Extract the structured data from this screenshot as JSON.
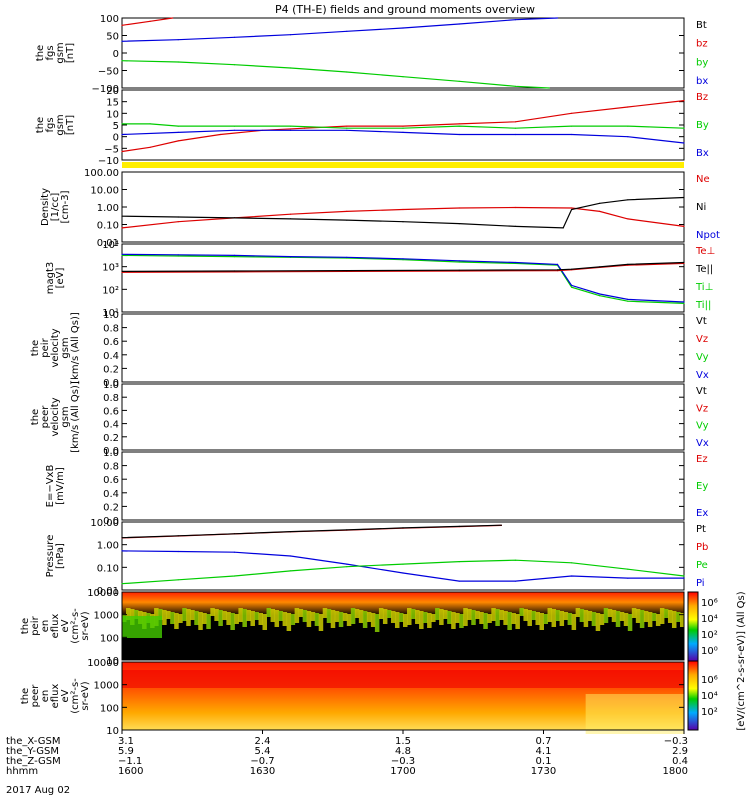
{
  "title": "P4 (TH-E) fields and ground moments overview",
  "date_label": "2017 Aug 02",
  "colors": {
    "red": "#dd0000",
    "green": "#00cc00",
    "blue": "#0000dd",
    "black": "#000000",
    "yellow": "#ffee00"
  },
  "chart_data": [
    {
      "type": "line",
      "id": "p1",
      "ylabel": [
        "the",
        "fgs",
        "gsm",
        "[nT]"
      ],
      "yticks": [
        "100",
        "50",
        "0",
        "−50",
        "−100"
      ],
      "ylim": [
        -100,
        110
      ],
      "legend": [
        {
          "label": "Bt",
          "color": "#000000"
        },
        {
          "label": "bz",
          "color": "#dd0000"
        },
        {
          "label": "by",
          "color": "#00cc00"
        },
        {
          "label": "bx",
          "color": "#0000dd"
        }
      ],
      "series": [
        {
          "name": "bz",
          "color": "#dd0000",
          "x": [
            1600,
            1610,
            1618
          ],
          "y": [
            88,
            100,
            110
          ]
        },
        {
          "name": "bx",
          "color": "#0000dd",
          "x": [
            1600,
            1620,
            1640,
            1660,
            1680,
            1700,
            1720,
            1740,
            1755
          ],
          "y": [
            40,
            45,
            52,
            60,
            70,
            80,
            92,
            105,
            110
          ]
        },
        {
          "name": "by",
          "color": "#00cc00",
          "x": [
            1600,
            1620,
            1640,
            1660,
            1680,
            1700,
            1720,
            1740,
            1752
          ],
          "y": [
            -18,
            -22,
            -30,
            -40,
            -52,
            -66,
            -80,
            -95,
            -100
          ]
        }
      ]
    },
    {
      "type": "line",
      "id": "p2",
      "ylabel": [
        "the",
        "fgs",
        "gsm",
        "[nT]"
      ],
      "yticks": [
        "20",
        "15",
        "10",
        "5",
        "0",
        "−5",
        "−10"
      ],
      "ylim": [
        -13,
        20
      ],
      "legend": [
        {
          "label": "Bz",
          "color": "#dd0000"
        },
        {
          "label": "By",
          "color": "#00cc00"
        },
        {
          "label": "Bx",
          "color": "#0000dd"
        }
      ],
      "series": [
        {
          "name": "Bz",
          "color": "#dd0000",
          "x": [
            1600,
            1610,
            1620,
            1635,
            1650,
            1665,
            1680,
            1700,
            1720,
            1740,
            1760,
            1780,
            1800
          ],
          "y": [
            -9,
            -7,
            -4,
            -1,
            1,
            2,
            3,
            3,
            4,
            5,
            9,
            12,
            15
          ]
        },
        {
          "name": "By",
          "color": "#00cc00",
          "x": [
            1600,
            1610,
            1620,
            1640,
            1660,
            1680,
            1700,
            1720,
            1740,
            1760,
            1780,
            1800
          ],
          "y": [
            4,
            4,
            3,
            3,
            3,
            2,
            2,
            3,
            2,
            3,
            3,
            2
          ]
        },
        {
          "name": "Bx",
          "color": "#0000dd",
          "x": [
            1600,
            1620,
            1640,
            1660,
            1680,
            1700,
            1720,
            1740,
            1760,
            1780,
            1800
          ],
          "y": [
            -1,
            0,
            1,
            1,
            1,
            0,
            -1,
            -1,
            -1,
            -2,
            -5
          ]
        }
      ]
    },
    {
      "type": "line",
      "id": "p3",
      "log": true,
      "ylabel": [
        "Density",
        "[1/cc]",
        "[cm-3]"
      ],
      "yticks": [
        "100.00",
        "10.00",
        "1.00",
        "0.10",
        "0.01"
      ],
      "ylim": [
        0.01,
        300
      ],
      "legend": [
        {
          "label": "Ne",
          "color": "#dd0000"
        },
        {
          "label": "Ni",
          "color": "#000000"
        },
        {
          "label": "Npot",
          "color": "#0000dd"
        }
      ],
      "series": [
        {
          "name": "Ne",
          "color": "#dd0000",
          "x": [
            1600,
            1620,
            1640,
            1660,
            1680,
            1700,
            1720,
            1740,
            1760,
            1770,
            1780,
            1800
          ],
          "y": [
            0.08,
            0.2,
            0.35,
            0.6,
            0.9,
            1.2,
            1.5,
            1.6,
            1.5,
            0.9,
            0.3,
            0.1
          ]
        },
        {
          "name": "Ni",
          "color": "#000000",
          "x": [
            1600,
            1620,
            1640,
            1660,
            1680,
            1700,
            1720,
            1740,
            1757,
            1760,
            1770,
            1780,
            1800
          ],
          "y": [
            0.45,
            0.4,
            0.35,
            0.3,
            0.25,
            0.2,
            0.15,
            0.1,
            0.08,
            1.2,
            3,
            5,
            7
          ]
        }
      ]
    },
    {
      "type": "line",
      "id": "p4",
      "log": true,
      "ylabel": [
        "magt3",
        "[eV]"
      ],
      "yticks": [
        "10⁴",
        "10³",
        "10²",
        "10¹"
      ],
      "ylim": [
        5,
        30000
      ],
      "legend": [
        {
          "label": "Te⊥",
          "color": "#dd0000"
        },
        {
          "label": "Te||",
          "color": "#000000"
        },
        {
          "label": "Ti⊥",
          "color": "#00cc00"
        },
        {
          "label": "Ti||",
          "color": "#00cc00"
        }
      ],
      "series": [
        {
          "name": "Ti",
          "color": "#00cc00",
          "x": [
            1600,
            1620,
            1640,
            1660,
            1680,
            1700,
            1720,
            1740,
            1755,
            1760,
            1770,
            1780,
            1800
          ],
          "y": [
            7000,
            6500,
            6000,
            5500,
            5000,
            4000,
            3000,
            2500,
            2000,
            120,
            40,
            20,
            15
          ]
        },
        {
          "name": "Ti||",
          "color": "#0000dd",
          "x": [
            1600,
            1620,
            1640,
            1660,
            1680,
            1700,
            1720,
            1740,
            1755,
            1760,
            1770,
            1780,
            1800
          ],
          "y": [
            8000,
            7500,
            7000,
            6000,
            5500,
            4500,
            3500,
            2800,
            2200,
            150,
            50,
            25,
            18
          ]
        },
        {
          "name": "Te",
          "color": "#dd0000",
          "x": [
            1600,
            1640,
            1680,
            1720,
            1755,
            1760,
            1770,
            1780,
            1800
          ],
          "y": [
            800,
            850,
            900,
            950,
            1000,
            1100,
            1500,
            2000,
            2500
          ]
        },
        {
          "name": "Te||",
          "color": "#000000",
          "x": [
            1600,
            1640,
            1680,
            1720,
            1755,
            1760,
            1770,
            1780,
            1800
          ],
          "y": [
            900,
            950,
            1000,
            1050,
            1100,
            1200,
            1600,
            2200,
            2800
          ]
        }
      ]
    },
    {
      "type": "line",
      "id": "p5",
      "ylabel": [
        "the",
        "peir",
        "velocity",
        "gsm",
        "[km/s (All Qs)]"
      ],
      "yticks": [
        "1.0",
        "0.8",
        "0.6",
        "0.4",
        "0.2",
        "0.0"
      ],
      "ylim": [
        0,
        1
      ],
      "legend": [
        {
          "label": "Vt",
          "color": "#000000"
        },
        {
          "label": "Vz",
          "color": "#dd0000"
        },
        {
          "label": "Vy",
          "color": "#00cc00"
        },
        {
          "label": "Vx",
          "color": "#0000dd"
        }
      ],
      "series": []
    },
    {
      "type": "line",
      "id": "p6",
      "ylabel": [
        "the",
        "peer",
        "velocity",
        "gsm",
        "[km/s (All Qs)]"
      ],
      "yticks": [
        "1.0",
        "0.8",
        "0.6",
        "0.4",
        "0.2",
        "0.0"
      ],
      "ylim": [
        0,
        1
      ],
      "legend": [
        {
          "label": "Vt",
          "color": "#000000"
        },
        {
          "label": "Vz",
          "color": "#dd0000"
        },
        {
          "label": "Vy",
          "color": "#00cc00"
        },
        {
          "label": "Vx",
          "color": "#0000dd"
        }
      ],
      "series": []
    },
    {
      "type": "line",
      "id": "p7",
      "ylabel": [
        "E=−VxB",
        "[mV/m]"
      ],
      "yticks": [
        "1.0",
        "0.8",
        "0.6",
        "0.4",
        "0.2",
        "0.0"
      ],
      "ylim": [
        0,
        1
      ],
      "legend": [
        {
          "label": "Ez",
          "color": "#dd0000"
        },
        {
          "label": "Ey",
          "color": "#00cc00"
        },
        {
          "label": "Ex",
          "color": "#0000dd"
        }
      ],
      "series": []
    },
    {
      "type": "line",
      "id": "p8",
      "log": true,
      "ylabel": [
        "Pressure",
        "[nPa]"
      ],
      "yticks": [
        "10.00",
        "1.00",
        "0.10",
        "0.01"
      ],
      "ylim": [
        0.003,
        30
      ],
      "legend": [
        {
          "label": "Pt",
          "color": "#000000"
        },
        {
          "label": "Pb",
          "color": "#dd0000"
        },
        {
          "label": "Pe",
          "color": "#00cc00"
        },
        {
          "label": "Pi",
          "color": "#0000dd"
        }
      ],
      "series": [
        {
          "name": "Pb",
          "color": "#dd0000",
          "x": [
            1600,
            1620,
            1640,
            1660,
            1680,
            1700,
            1720,
            1735
          ],
          "y": [
            3.5,
            4.5,
            6,
            8,
            10,
            13,
            16,
            19
          ]
        },
        {
          "name": "Pt",
          "color": "#000000",
          "x": [
            1600,
            1620,
            1640,
            1660,
            1680,
            1700,
            1720,
            1735
          ],
          "y": [
            3.6,
            4.6,
            6.1,
            8.2,
            10.3,
            13.5,
            16.5,
            19.5
          ]
        },
        {
          "name": "Pi",
          "color": "#0000dd",
          "x": [
            1600,
            1620,
            1640,
            1660,
            1680,
            1700,
            1720,
            1740,
            1760,
            1780,
            1800
          ],
          "y": [
            0.6,
            0.55,
            0.5,
            0.3,
            0.1,
            0.03,
            0.01,
            0.01,
            0.02,
            0.015,
            0.015
          ]
        },
        {
          "name": "Pe",
          "color": "#00cc00",
          "x": [
            1600,
            1620,
            1640,
            1660,
            1680,
            1700,
            1720,
            1740,
            1760,
            1780,
            1800
          ],
          "y": [
            0.007,
            0.012,
            0.02,
            0.04,
            0.07,
            0.1,
            0.14,
            0.17,
            0.12,
            0.05,
            0.02
          ]
        }
      ]
    },
    {
      "type": "heatmap",
      "id": "p9",
      "ylabel": [
        "the",
        "peir",
        "en",
        "eflux",
        "eV",
        "(cm²-s-",
        "sr-eV)"
      ],
      "yticks": [
        "10000",
        "1000",
        "100",
        "10"
      ]
    },
    {
      "type": "heatmap",
      "id": "p10",
      "ylabel": [
        "the",
        "peer",
        "en",
        "eflux",
        "eV",
        "(cm²-s-",
        "sr-eV)"
      ],
      "yticks": [
        "10000",
        "1000",
        "100",
        "10"
      ]
    }
  ],
  "colorbar": {
    "ticks": [
      "10⁶",
      "10⁴",
      "10²",
      "10⁰",
      "10⁶",
      "10⁴",
      "10²"
    ],
    "label": "[eV/(cm^2-s-sr-eV)] (All Qs)"
  },
  "xaxis": {
    "rows": [
      {
        "label": "the_X-GSM",
        "values": [
          "3.1",
          "2.4",
          "1.5",
          "0.7",
          "−0.3"
        ]
      },
      {
        "label": "the_Y-GSM",
        "values": [
          "5.9",
          "5.4",
          "4.8",
          "4.1",
          "2.9"
        ]
      },
      {
        "label": "the_Z-GSM",
        "values": [
          "−1.1",
          "−0.7",
          "−0.3",
          "0.1",
          "0.4"
        ]
      },
      {
        "label": "hhmm",
        "values": [
          "1600",
          "1630",
          "1700",
          "1730",
          "1800"
        ]
      }
    ]
  }
}
